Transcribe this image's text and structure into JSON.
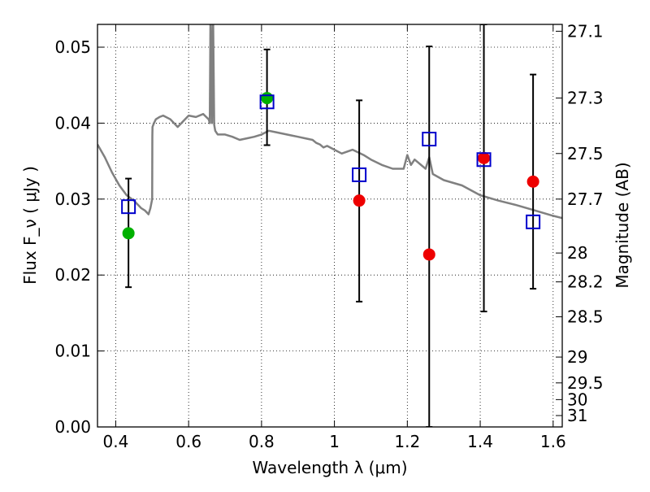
{
  "chart_data": {
    "type": "scatter",
    "xlabel": "Wavelength  λ (μm)",
    "ylabel": "Flux  F_ν  ( μJy )",
    "ylabel_right": "Magnitude (AB)",
    "xlim": [
      0.35,
      1.625
    ],
    "ylim": [
      0.0,
      0.053
    ],
    "x_ticks": [
      0.4,
      0.6,
      0.8,
      1.0,
      1.2,
      1.4,
      1.6
    ],
    "x_tick_labels": [
      "0.4",
      "0.6",
      "0.8",
      "1",
      "1.2",
      "1.4",
      "1.6"
    ],
    "y_ticks": [
      0.0,
      0.01,
      0.02,
      0.03,
      0.04,
      0.05
    ],
    "y_tick_labels": [
      "0.00",
      "0.01",
      "0.02",
      "0.03",
      "0.04",
      "0.05"
    ],
    "right_ticks": [
      {
        "label": "27.1",
        "flux": 0.0521
      },
      {
        "label": "27.3",
        "flux": 0.0433
      },
      {
        "label": "27.5",
        "flux": 0.036
      },
      {
        "label": "27.7",
        "flux": 0.03
      },
      {
        "label": "28",
        "flux": 0.0229
      },
      {
        "label": "28.2",
        "flux": 0.0191
      },
      {
        "label": "28.5",
        "flux": 0.0145
      },
      {
        "label": "29",
        "flux": 0.0092
      },
      {
        "label": "29.5",
        "flux": 0.0058
      },
      {
        "label": "30",
        "flux": 0.0036
      },
      {
        "label": "31",
        "flux": 0.0015
      }
    ],
    "grid": true,
    "series": [
      {
        "kind": "line",
        "color": "#808080",
        "x": [
          0.35,
          0.37,
          0.39,
          0.41,
          0.43,
          0.45,
          0.47,
          0.48,
          0.49,
          0.495,
          0.5,
          0.5005,
          0.501,
          0.505,
          0.51,
          0.52,
          0.53,
          0.55,
          0.57,
          0.59,
          0.6,
          0.62,
          0.64,
          0.655,
          0.658,
          0.66,
          0.664,
          0.667,
          0.67,
          0.673,
          0.68,
          0.7,
          0.72,
          0.74,
          0.76,
          0.78,
          0.8,
          0.82,
          0.84,
          0.86,
          0.88,
          0.9,
          0.92,
          0.94,
          0.95,
          0.96,
          0.97,
          0.98,
          1.0,
          1.02,
          1.05,
          1.08,
          1.1,
          1.13,
          1.16,
          1.19,
          1.2,
          1.21,
          1.22,
          1.25,
          1.26,
          1.27,
          1.3,
          1.35,
          1.4,
          1.45,
          1.5,
          1.55,
          1.6,
          1.625
        ],
        "y": [
          0.0372,
          0.0355,
          0.0335,
          0.0318,
          0.0305,
          0.0298,
          0.0288,
          0.0285,
          0.028,
          0.0288,
          0.03,
          0.0383,
          0.0395,
          0.04,
          0.0405,
          0.0408,
          0.041,
          0.0405,
          0.0395,
          0.0405,
          0.041,
          0.0408,
          0.0412,
          0.0405,
          0.04,
          0.055,
          0.04,
          0.055,
          0.0398,
          0.039,
          0.0385,
          0.0385,
          0.0382,
          0.0378,
          0.038,
          0.0382,
          0.0385,
          0.039,
          0.0388,
          0.0386,
          0.0384,
          0.0382,
          0.038,
          0.0378,
          0.0374,
          0.0372,
          0.0368,
          0.037,
          0.0365,
          0.036,
          0.0365,
          0.0358,
          0.0352,
          0.0345,
          0.034,
          0.034,
          0.0358,
          0.0345,
          0.0352,
          0.034,
          0.0355,
          0.0333,
          0.0325,
          0.0318,
          0.0305,
          0.0298,
          0.0292,
          0.0285,
          0.0278,
          0.0275
        ]
      },
      {
        "name": "model-photometry",
        "kind": "open-square",
        "color": "#0000cc",
        "x": [
          0.435,
          0.815,
          1.068,
          1.26,
          1.41,
          1.545
        ],
        "y": [
          0.029,
          0.0428,
          0.0332,
          0.0379,
          0.0352,
          0.027
        ]
      },
      {
        "name": "detections-green",
        "kind": "filled-circle",
        "color": "#00b000",
        "x": [
          0.435,
          0.815
        ],
        "y": [
          0.0255,
          0.0433
        ]
      },
      {
        "name": "detections-red",
        "kind": "filled-circle",
        "color": "#ee0000",
        "x": [
          1.068,
          1.26,
          1.41,
          1.545
        ],
        "y": [
          0.0298,
          0.0227,
          0.0354,
          0.0323
        ]
      },
      {
        "name": "error-bars",
        "kind": "errorbar",
        "color": "#000000",
        "x": [
          0.435,
          0.815,
          1.068,
          1.26,
          1.41,
          1.545
        ],
        "ylow": [
          0.0184,
          0.0371,
          0.0165,
          0.0,
          0.0152,
          0.0182
        ],
        "yhigh": [
          0.0327,
          0.0497,
          0.043,
          0.0501,
          0.053,
          0.0464
        ]
      }
    ]
  }
}
